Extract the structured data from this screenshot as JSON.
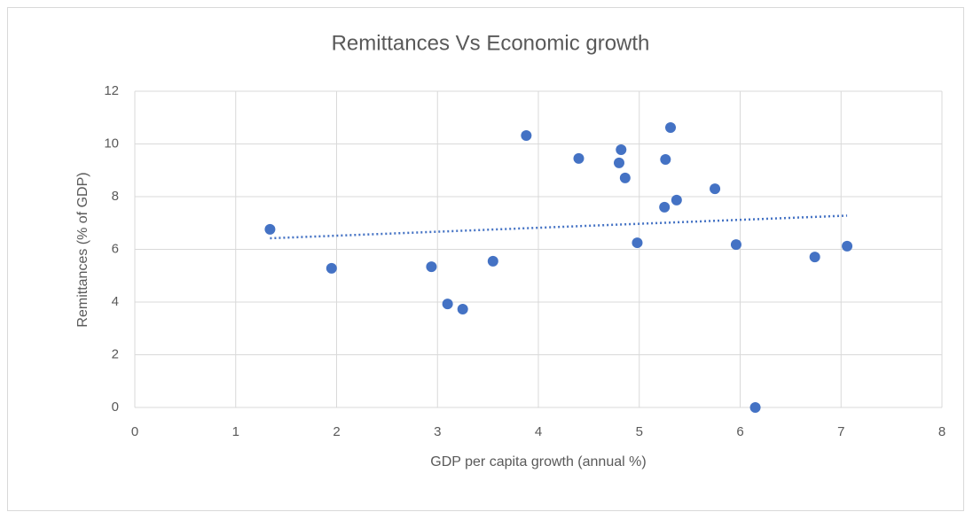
{
  "chart_data": {
    "type": "scatter",
    "title": "Remittances Vs Economic growth",
    "x_label": "GDP per capita growth (annual %)",
    "y_label": "Remittances (% of GDP)",
    "color": "#4472c4",
    "x": [
      1.34,
      1.95,
      2.94,
      3.1,
      3.25,
      3.55,
      3.88,
      4.4,
      4.82,
      4.8,
      4.86,
      4.98,
      5.26,
      5.25,
      5.31,
      5.37,
      5.75,
      5.96,
      6.15,
      6.74,
      7.06
    ],
    "values": [
      6.76,
      5.28,
      5.34,
      3.93,
      3.73,
      5.55,
      10.32,
      9.45,
      9.78,
      9.28,
      8.71,
      6.25,
      9.41,
      7.6,
      10.62,
      7.87,
      8.3,
      6.18,
      0,
      5.71,
      6.12
    ],
    "trendline": {
      "x": [
        1.34,
        7.06
      ],
      "values": [
        6.42,
        7.28
      ]
    },
    "xlim": [
      0,
      8
    ],
    "xticks": [
      0,
      1,
      2,
      3,
      4,
      5,
      6,
      7,
      8
    ],
    "ylim": [
      0,
      12
    ],
    "yticks": [
      0,
      2,
      4,
      6,
      8,
      10,
      12
    ],
    "grid": true
  }
}
